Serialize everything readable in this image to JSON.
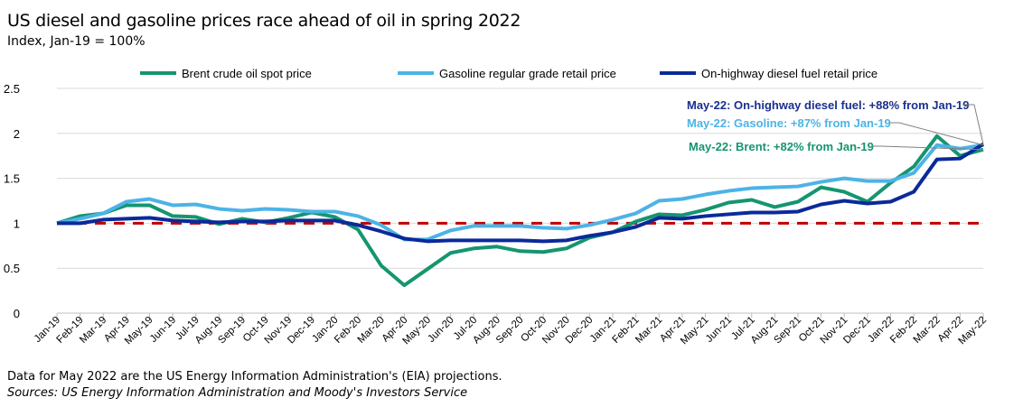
{
  "chart_data": {
    "type": "line",
    "title": "US diesel and gasoline prices race ahead of oil in spring 2022",
    "subtitle": "Index, Jan-19 = 100%",
    "xlabel": "",
    "ylabel": "",
    "ylim": [
      0,
      2.5
    ],
    "yticks": [
      "0",
      "0.5",
      "1",
      "1.5",
      "2",
      "2.5"
    ],
    "yticks_values": [
      0,
      0.5,
      1,
      1.5,
      2,
      2.5
    ],
    "grid": true,
    "legend": "top",
    "categories": [
      "Jan-19",
      "Feb-19",
      "Mar-19",
      "Apr-19",
      "May-19",
      "Jun-19",
      "Jul-19",
      "Aug-19",
      "Sep-19",
      "Oct-19",
      "Nov-19",
      "Dec-19",
      "Jan-20",
      "Feb-20",
      "Mar-20",
      "Apr-20",
      "May-20",
      "Jun-20",
      "Jul-20",
      "Aug-20",
      "Sep-20",
      "Oct-20",
      "Nov-20",
      "Dec-20",
      "Jan-21",
      "Feb-21",
      "Mar-21",
      "Apr-21",
      "May-21",
      "Jun-21",
      "Jul-21",
      "Aug-21",
      "Sep-21",
      "Oct-21",
      "Nov-21",
      "Dec-21",
      "Jan-22",
      "Feb-22",
      "Mar-22",
      "Apr-22",
      "May-22"
    ],
    "series": [
      {
        "name": "Brent crude oil spot price",
        "color": "#159570",
        "values": [
          1.0,
          1.08,
          1.11,
          1.2,
          1.2,
          1.08,
          1.07,
          0.99,
          1.05,
          1.01,
          1.06,
          1.12,
          1.07,
          0.93,
          0.53,
          0.31,
          0.49,
          0.67,
          0.72,
          0.74,
          0.69,
          0.68,
          0.72,
          0.84,
          0.9,
          1.02,
          1.1,
          1.09,
          1.15,
          1.23,
          1.26,
          1.18,
          1.24,
          1.4,
          1.35,
          1.24,
          1.45,
          1.63,
          1.97,
          1.75,
          1.82
        ]
      },
      {
        "name": "Gasoline regular grade retail price",
        "color": "#4db3e6",
        "values": [
          1.0,
          1.05,
          1.11,
          1.24,
          1.27,
          1.2,
          1.21,
          1.16,
          1.14,
          1.16,
          1.15,
          1.13,
          1.13,
          1.08,
          0.98,
          0.82,
          0.82,
          0.92,
          0.97,
          0.97,
          0.97,
          0.95,
          0.94,
          0.98,
          1.04,
          1.11,
          1.25,
          1.27,
          1.32,
          1.36,
          1.39,
          1.4,
          1.41,
          1.46,
          1.5,
          1.47,
          1.47,
          1.56,
          1.87,
          1.83,
          1.87
        ]
      },
      {
        "name": "On-highway diesel fuel retail price",
        "color": "#0a2a9a",
        "values": [
          1.0,
          1.0,
          1.04,
          1.05,
          1.06,
          1.03,
          1.02,
          1.01,
          1.02,
          1.02,
          1.03,
          1.03,
          1.03,
          0.98,
          0.91,
          0.83,
          0.8,
          0.81,
          0.81,
          0.81,
          0.81,
          0.8,
          0.81,
          0.86,
          0.9,
          0.96,
          1.06,
          1.05,
          1.08,
          1.1,
          1.12,
          1.12,
          1.13,
          1.21,
          1.25,
          1.22,
          1.24,
          1.35,
          1.71,
          1.72,
          1.88
        ]
      }
    ],
    "reference_line": {
      "value": 1,
      "color": "#c00000",
      "style": "dashed"
    },
    "annotations": [
      {
        "text": "May-22: On-highway diesel fuel: +88% from Jan-19",
        "color": "#1a2f8f",
        "series": 2
      },
      {
        "text": "May-22: Gasoline: +87% from Jan-19",
        "color": "#4db3e6",
        "series": 1
      },
      {
        "text": "May-22: Brent: +82% from Jan-19",
        "color": "#159570",
        "series": 0
      }
    ]
  },
  "footer": {
    "note": "Data for May 2022 are the US Energy Information Administration's (EIA) projections.",
    "source": "Sources: US Energy Information Administration and Moody's Investors Service"
  }
}
